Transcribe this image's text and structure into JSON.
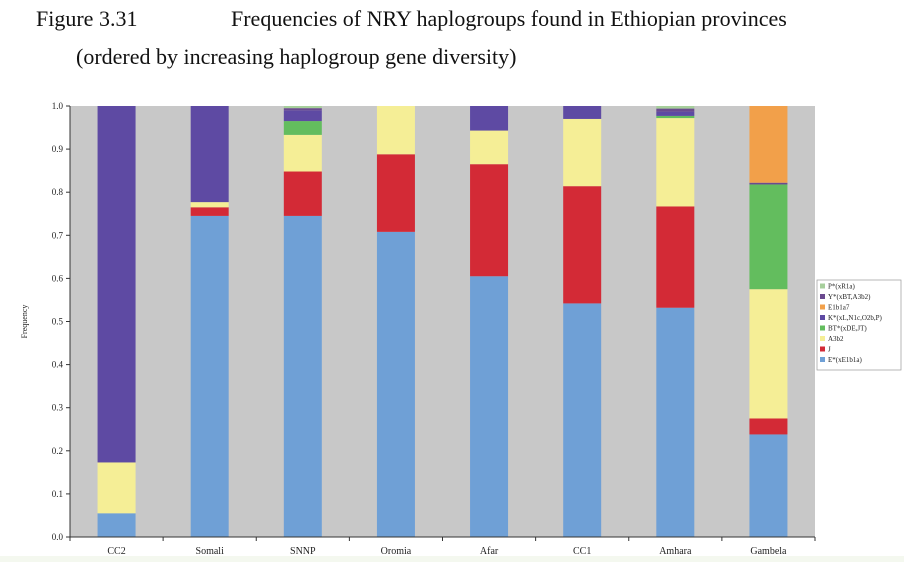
{
  "figure": {
    "number": "Figure 3.31",
    "title": "Frequencies of NRY haplogroups found in Ethiopian provinces",
    "subtitle": "(ordered by increasing haplogroup gene diversity)"
  },
  "chart_data": {
    "type": "bar",
    "stacked": true,
    "categories": [
      "CC2",
      "Somali",
      "SNNP",
      "Oromia",
      "Afar",
      "CC1",
      "Amhara",
      "Gambela"
    ],
    "ylabel": "Frequency",
    "xlabel": "",
    "ylim": [
      0,
      1.0
    ],
    "yticks": [
      "0.0",
      "0.1",
      "0.2",
      "0.3",
      "0.4",
      "0.5",
      "0.6",
      "0.7",
      "0.8",
      "0.9",
      "1.0"
    ],
    "grid": false,
    "legend_position": "right",
    "plot_background": "#c8c8c8",
    "series": [
      {
        "name": "E*(xE1b1a)",
        "color": "#6fa0d6",
        "values": [
          0.055,
          0.745,
          0.745,
          0.708,
          0.605,
          0.542,
          0.532,
          0.238
        ]
      },
      {
        "name": "J",
        "color": "#d32a36",
        "values": [
          0.0,
          0.02,
          0.103,
          0.18,
          0.26,
          0.272,
          0.235,
          0.037
        ]
      },
      {
        "name": "A3b2",
        "color": "#f5ee96",
        "values": [
          0.118,
          0.012,
          0.085,
          0.112,
          0.078,
          0.156,
          0.205,
          0.3
        ]
      },
      {
        "name": "BT*(xDE,JT)",
        "color": "#63bd5e",
        "values": [
          0.0,
          0.0,
          0.032,
          0.0,
          0.0,
          0.0,
          0.005,
          0.243
        ]
      },
      {
        "name": "K*(xL,N1c,O2b,P)",
        "color": "#5e4aa3",
        "values": [
          0.827,
          0.223,
          0.025,
          0.0,
          0.057,
          0.03,
          0.01,
          0.0
        ]
      },
      {
        "name": "Y*(xBT,A3b2)",
        "color": "#6b4a8f",
        "values": [
          0.0,
          0.0,
          0.005,
          0.0,
          0.0,
          0.0,
          0.007,
          0.004
        ]
      },
      {
        "name": "E1b1a7",
        "color": "#f2a04a",
        "values": [
          0.0,
          0.0,
          0.0,
          0.0,
          0.0,
          0.0,
          0.0,
          0.178
        ]
      },
      {
        "name": "P*(xR1a)",
        "color": "#a7cf9c",
        "values": [
          0.0,
          0.0,
          0.005,
          0.0,
          0.0,
          0.0,
          0.006,
          0.0
        ]
      }
    ],
    "legend_order": [
      "P*(xR1a)",
      "Y*(xBT,A3b2)",
      "E1b1a7",
      "K*(xL,N1c,O2b,P)",
      "BT*(xDE,JT)",
      "A3b2",
      "J",
      "E*(xE1b1a)"
    ]
  }
}
